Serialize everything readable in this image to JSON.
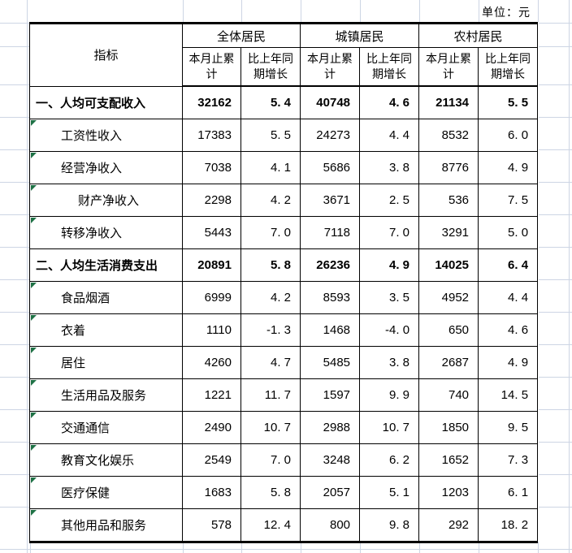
{
  "sheet": {
    "unit_label": "单位：元"
  },
  "table": {
    "indicator_header": "指标",
    "groups": [
      "全体居民",
      "城镇居民",
      "农村居民"
    ],
    "subheaders": [
      "本月止累计",
      "比上年同期增长"
    ],
    "rows": [
      {
        "label": "一、人均可支配收入",
        "level": 1,
        "bold": true,
        "marker": false,
        "values": [
          "32162",
          "5. 4",
          "40748",
          "4. 6",
          "21134",
          "5. 5"
        ]
      },
      {
        "label": "工资性收入",
        "level": 2,
        "bold": false,
        "marker": true,
        "values": [
          "17383",
          "5. 5",
          "24273",
          "4. 4",
          "8532",
          "6. 0"
        ]
      },
      {
        "label": "经营净收入",
        "level": 2,
        "bold": false,
        "marker": true,
        "values": [
          "7038",
          "4. 1",
          "5686",
          "3. 8",
          "8776",
          "4. 9"
        ]
      },
      {
        "label": "财产净收入",
        "level": 3,
        "bold": false,
        "marker": true,
        "values": [
          "2298",
          "4. 2",
          "3671",
          "2. 5",
          "536",
          "7. 5"
        ]
      },
      {
        "label": "转移净收入",
        "level": 2,
        "bold": false,
        "marker": true,
        "values": [
          "5443",
          "7. 0",
          "7118",
          "7. 0",
          "3291",
          "5. 0"
        ]
      },
      {
        "label": "二、人均生活消费支出",
        "level": 1,
        "bold": true,
        "marker": false,
        "values": [
          "20891",
          "5. 8",
          "26236",
          "4. 9",
          "14025",
          "6. 4"
        ]
      },
      {
        "label": "食品烟酒",
        "level": 2,
        "bold": false,
        "marker": true,
        "values": [
          "6999",
          "4. 2",
          "8593",
          "3. 5",
          "4952",
          "4. 4"
        ]
      },
      {
        "label": "衣着",
        "level": 2,
        "bold": false,
        "marker": true,
        "values": [
          "1110",
          "-1. 3",
          "1468",
          "-4. 0",
          "650",
          "4. 6"
        ]
      },
      {
        "label": "居住",
        "level": 2,
        "bold": false,
        "marker": true,
        "values": [
          "4260",
          "4. 7",
          "5485",
          "3. 8",
          "2687",
          "4. 9"
        ]
      },
      {
        "label": "生活用品及服务",
        "level": 2,
        "bold": false,
        "marker": true,
        "values": [
          "1221",
          "11. 7",
          "1597",
          "9. 9",
          "740",
          "14. 5"
        ]
      },
      {
        "label": "交通通信",
        "level": 2,
        "bold": false,
        "marker": true,
        "values": [
          "2490",
          "10. 7",
          "2988",
          "10. 7",
          "1850",
          "9. 5"
        ]
      },
      {
        "label": "教育文化娱乐",
        "level": 2,
        "bold": false,
        "marker": true,
        "values": [
          "2549",
          "7. 0",
          "3248",
          "6. 2",
          "1652",
          "7. 3"
        ]
      },
      {
        "label": "医疗保健",
        "level": 2,
        "bold": false,
        "marker": true,
        "values": [
          "1683",
          "5. 8",
          "2057",
          "5. 1",
          "1203",
          "6. 1"
        ]
      },
      {
        "label": "其他用品和服务",
        "level": 2,
        "bold": false,
        "marker": true,
        "values": [
          "578",
          "12. 4",
          "800",
          "9. 8",
          "292",
          "18. 2"
        ]
      }
    ]
  },
  "colors": {
    "grid_line": "#cdd5e4",
    "error_indicator_green": "#1e7145",
    "table_border": "#000000"
  }
}
